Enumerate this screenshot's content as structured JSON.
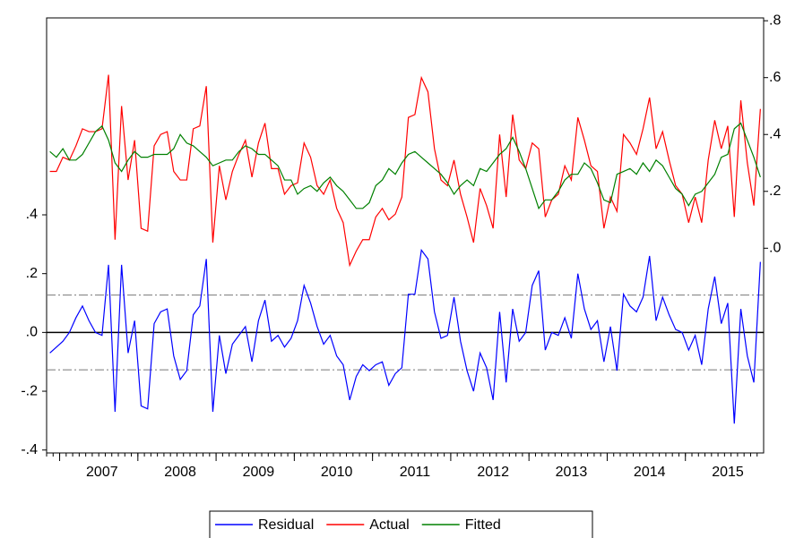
{
  "chart_data": {
    "type": "line",
    "categories": [
      null,
      null,
      null,
      null,
      null,
      null,
      null,
      null,
      "2007",
      null,
      null,
      null,
      null,
      null,
      null,
      null,
      null,
      null,
      null,
      null,
      "2008",
      null,
      null,
      null,
      null,
      null,
      null,
      null,
      null,
      null,
      null,
      null,
      "2009",
      null,
      null,
      null,
      null,
      null,
      null,
      null,
      null,
      null,
      null,
      null,
      "2010",
      null,
      null,
      null,
      null,
      null,
      null,
      null,
      null,
      null,
      null,
      null,
      "2011",
      null,
      null,
      null,
      null,
      null,
      null,
      null,
      null,
      null,
      null,
      null,
      "2012",
      null,
      null,
      null,
      null,
      null,
      null,
      null,
      null,
      null,
      null,
      null,
      "2013",
      null,
      null,
      null,
      null,
      null,
      null,
      null,
      null,
      null,
      null,
      null,
      "2014",
      null,
      null,
      null,
      null,
      null,
      null,
      null,
      null,
      null,
      null,
      null,
      "2015",
      null,
      null,
      null,
      null,
      null
    ],
    "series": [
      {
        "name": "Residual",
        "color": "#0000ff",
        "axis": "y",
        "values": [
          -0.07,
          -0.05,
          -0.03,
          0.0,
          0.05,
          0.09,
          0.04,
          0.0,
          -0.01,
          0.23,
          -0.27,
          0.23,
          -0.07,
          0.04,
          -0.25,
          -0.26,
          0.03,
          0.07,
          0.08,
          -0.08,
          -0.16,
          -0.13,
          0.06,
          0.09,
          0.25,
          -0.27,
          -0.01,
          -0.14,
          -0.04,
          -0.01,
          0.02,
          -0.1,
          0.04,
          0.11,
          -0.03,
          -0.01,
          -0.05,
          -0.02,
          0.04,
          0.16,
          0.1,
          0.02,
          -0.04,
          -0.01,
          -0.08,
          -0.11,
          -0.23,
          -0.15,
          -0.11,
          -0.13,
          -0.11,
          -0.1,
          -0.18,
          -0.14,
          -0.12,
          0.13,
          0.13,
          0.28,
          0.25,
          0.07,
          -0.02,
          -0.01,
          0.12,
          -0.03,
          -0.13,
          -0.2,
          -0.07,
          -0.12,
          -0.23,
          0.07,
          -0.17,
          0.08,
          -0.03,
          0.0,
          0.16,
          0.21,
          -0.06,
          0.0,
          -0.01,
          0.05,
          -0.02,
          0.2,
          0.08,
          0.01,
          0.04,
          -0.1,
          0.02,
          -0.13,
          0.13,
          0.09,
          0.07,
          0.12,
          0.26,
          0.04,
          0.12,
          0.06,
          0.01,
          0.0,
          -0.06,
          -0.01,
          -0.11,
          0.08,
          0.19,
          0.03,
          0.1,
          -0.31,
          0.08,
          -0.08,
          -0.17,
          0.24
        ]
      },
      {
        "name": "Actual",
        "color": "#ff0000",
        "axis": "y2",
        "values": [
          0.27,
          0.27,
          0.32,
          0.31,
          0.36,
          0.42,
          0.41,
          0.41,
          0.42,
          0.61,
          0.03,
          0.5,
          0.24,
          0.38,
          0.07,
          0.06,
          0.36,
          0.4,
          0.41,
          0.27,
          0.24,
          0.24,
          0.42,
          0.43,
          0.57,
          0.02,
          0.29,
          0.17,
          0.27,
          0.33,
          0.38,
          0.25,
          0.37,
          0.44,
          0.28,
          0.28,
          0.19,
          0.22,
          0.23,
          0.37,
          0.32,
          0.22,
          0.19,
          0.24,
          0.14,
          0.09,
          -0.06,
          -0.01,
          0.03,
          0.03,
          0.11,
          0.14,
          0.1,
          0.12,
          0.18,
          0.46,
          0.47,
          0.6,
          0.55,
          0.35,
          0.24,
          0.22,
          0.31,
          0.19,
          0.11,
          0.02,
          0.21,
          0.15,
          0.07,
          0.4,
          0.18,
          0.47,
          0.31,
          0.28,
          0.37,
          0.35,
          0.11,
          0.17,
          0.19,
          0.29,
          0.24,
          0.46,
          0.38,
          0.29,
          0.27,
          0.07,
          0.18,
          0.13,
          0.4,
          0.37,
          0.33,
          0.42,
          0.53,
          0.35,
          0.41,
          0.31,
          0.22,
          0.19,
          0.09,
          0.18,
          0.09,
          0.31,
          0.45,
          0.35,
          0.43,
          0.11,
          0.52,
          0.3,
          0.15,
          0.49
        ]
      },
      {
        "name": "Fitted",
        "color": "#008000",
        "axis": "y2",
        "values": [
          0.34,
          0.32,
          0.35,
          0.31,
          0.31,
          0.33,
          0.37,
          0.41,
          0.43,
          0.38,
          0.3,
          0.27,
          0.31,
          0.34,
          0.32,
          0.32,
          0.33,
          0.33,
          0.33,
          0.35,
          0.4,
          0.37,
          0.36,
          0.34,
          0.32,
          0.29,
          0.3,
          0.31,
          0.31,
          0.34,
          0.36,
          0.35,
          0.33,
          0.33,
          0.31,
          0.29,
          0.24,
          0.24,
          0.19,
          0.21,
          0.22,
          0.2,
          0.23,
          0.25,
          0.22,
          0.2,
          0.17,
          0.14,
          0.14,
          0.16,
          0.22,
          0.24,
          0.28,
          0.26,
          0.3,
          0.33,
          0.34,
          0.32,
          0.3,
          0.28,
          0.26,
          0.23,
          0.19,
          0.22,
          0.24,
          0.22,
          0.28,
          0.27,
          0.3,
          0.33,
          0.35,
          0.39,
          0.34,
          0.28,
          0.21,
          0.14,
          0.17,
          0.17,
          0.2,
          0.24,
          0.26,
          0.26,
          0.3,
          0.28,
          0.23,
          0.17,
          0.16,
          0.26,
          0.27,
          0.28,
          0.26,
          0.3,
          0.27,
          0.31,
          0.29,
          0.25,
          0.21,
          0.19,
          0.15,
          0.19,
          0.2,
          0.23,
          0.26,
          0.32,
          0.33,
          0.42,
          0.44,
          0.38,
          0.32,
          0.25
        ]
      }
    ],
    "ylim": [
      -0.41,
      1.07
    ],
    "yticks": [
      {
        "value": -0.4,
        "label": "-.4"
      },
      {
        "value": -0.2,
        "label": "-.2"
      },
      {
        "value": 0,
        "label": ".0"
      },
      {
        "value": 0.2,
        "label": ".2"
      },
      {
        "value": 0.4,
        "label": ".4"
      }
    ],
    "y2lim": [
      -0.72,
      0.81
    ],
    "y2ticks": [
      {
        "value": 0,
        "label": ".0"
      },
      {
        "value": 0.2,
        "label": ".2"
      },
      {
        "value": 0.4,
        "label": ".4"
      },
      {
        "value": 0.6,
        "label": ".6"
      },
      {
        "value": 0.8,
        "label": ".8"
      }
    ],
    "hlines": [
      0.127,
      -0.127
    ],
    "legend": "bottom"
  }
}
